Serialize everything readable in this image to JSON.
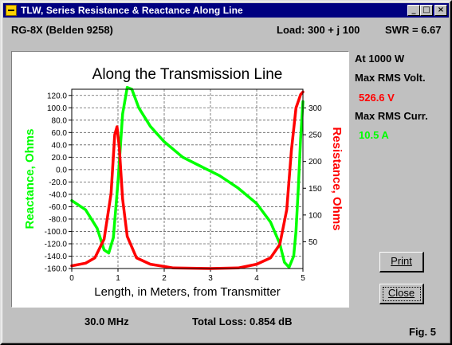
{
  "window": {
    "title": "TLW, Series Resistance & Reactance Along Line",
    "minimize_glyph": "_",
    "maximize_glyph": "□",
    "close_glyph": "×"
  },
  "header": {
    "cable": "RG-8X (Belden 9258)",
    "load": "Load:  300 + j  100",
    "swr": "SWR = 6.67"
  },
  "side_panel": {
    "power": "At 1000 W",
    "max_volt_label": "Max RMS Volt.",
    "max_volt_value": "526.6 V",
    "max_curr_label": "Max RMS Curr.",
    "max_curr_value": "10.5 A",
    "volt_color": "#ff0000",
    "curr_color": "#00ff00"
  },
  "footer": {
    "frequency": "30.0 MHz",
    "total_loss": "Total Loss: 0.854 dB",
    "figure": "Fig. 5"
  },
  "buttons": {
    "print_label": "Print",
    "close_label": "Close"
  },
  "chart_data": {
    "type": "line",
    "title": "Along the Transmission Line",
    "xlabel": "Length, in Meters, from Transmitter",
    "ylabel_left": "Reactance, Ohms",
    "ylabel_right": "Resistance, Ohms",
    "xlim": [
      0,
      5
    ],
    "ylim_left": [
      -160,
      130
    ],
    "ylim_right": [
      0,
      335
    ],
    "x_ticks": [
      "0",
      "1",
      "2",
      "3",
      "4",
      "5"
    ],
    "left_ticks": [
      "120.0",
      "100.0",
      "80.0",
      "60.0",
      "40.0",
      "20.0",
      "0.0",
      "-20.0",
      "-40.0",
      "-60.0",
      "-80.0",
      "-100.0",
      "-120.0",
      "-140.0",
      "-160.0"
    ],
    "right_ticks": [
      "50",
      "100",
      "150",
      "200",
      "250",
      "300"
    ],
    "grid": true,
    "series": [
      {
        "axis": "left",
        "color": "#00ff00",
        "points": [
          [
            0,
            -50
          ],
          [
            0.3,
            -65
          ],
          [
            0.55,
            -95
          ],
          [
            0.7,
            -130
          ],
          [
            0.8,
            -135
          ],
          [
            0.9,
            -110
          ],
          [
            1.0,
            -20
          ],
          [
            1.1,
            90
          ],
          [
            1.2,
            133
          ],
          [
            1.3,
            130
          ],
          [
            1.45,
            100
          ],
          [
            1.7,
            70
          ],
          [
            2.0,
            45
          ],
          [
            2.4,
            20
          ],
          [
            2.8,
            5
          ],
          [
            3.2,
            -10
          ],
          [
            3.6,
            -30
          ],
          [
            4.0,
            -55
          ],
          [
            4.3,
            -85
          ],
          [
            4.5,
            -120
          ],
          [
            4.6,
            -150
          ],
          [
            4.7,
            -158
          ],
          [
            4.8,
            -140
          ],
          [
            4.85,
            -100
          ],
          [
            4.9,
            -30
          ],
          [
            4.95,
            50
          ],
          [
            5.0,
            110
          ]
        ]
      },
      {
        "axis": "right",
        "color": "#ff0000",
        "points": [
          [
            0,
            5
          ],
          [
            0.3,
            10
          ],
          [
            0.5,
            20
          ],
          [
            0.7,
            55
          ],
          [
            0.85,
            140
          ],
          [
            0.93,
            250
          ],
          [
            0.98,
            265
          ],
          [
            1.03,
            225
          ],
          [
            1.1,
            130
          ],
          [
            1.2,
            60
          ],
          [
            1.4,
            20
          ],
          [
            1.7,
            8
          ],
          [
            2.2,
            1
          ],
          [
            3.0,
            0
          ],
          [
            3.6,
            1
          ],
          [
            4.0,
            8
          ],
          [
            4.3,
            20
          ],
          [
            4.5,
            45
          ],
          [
            4.65,
            110
          ],
          [
            4.75,
            220
          ],
          [
            4.85,
            300
          ],
          [
            4.95,
            325
          ],
          [
            5.0,
            330
          ]
        ]
      }
    ]
  }
}
